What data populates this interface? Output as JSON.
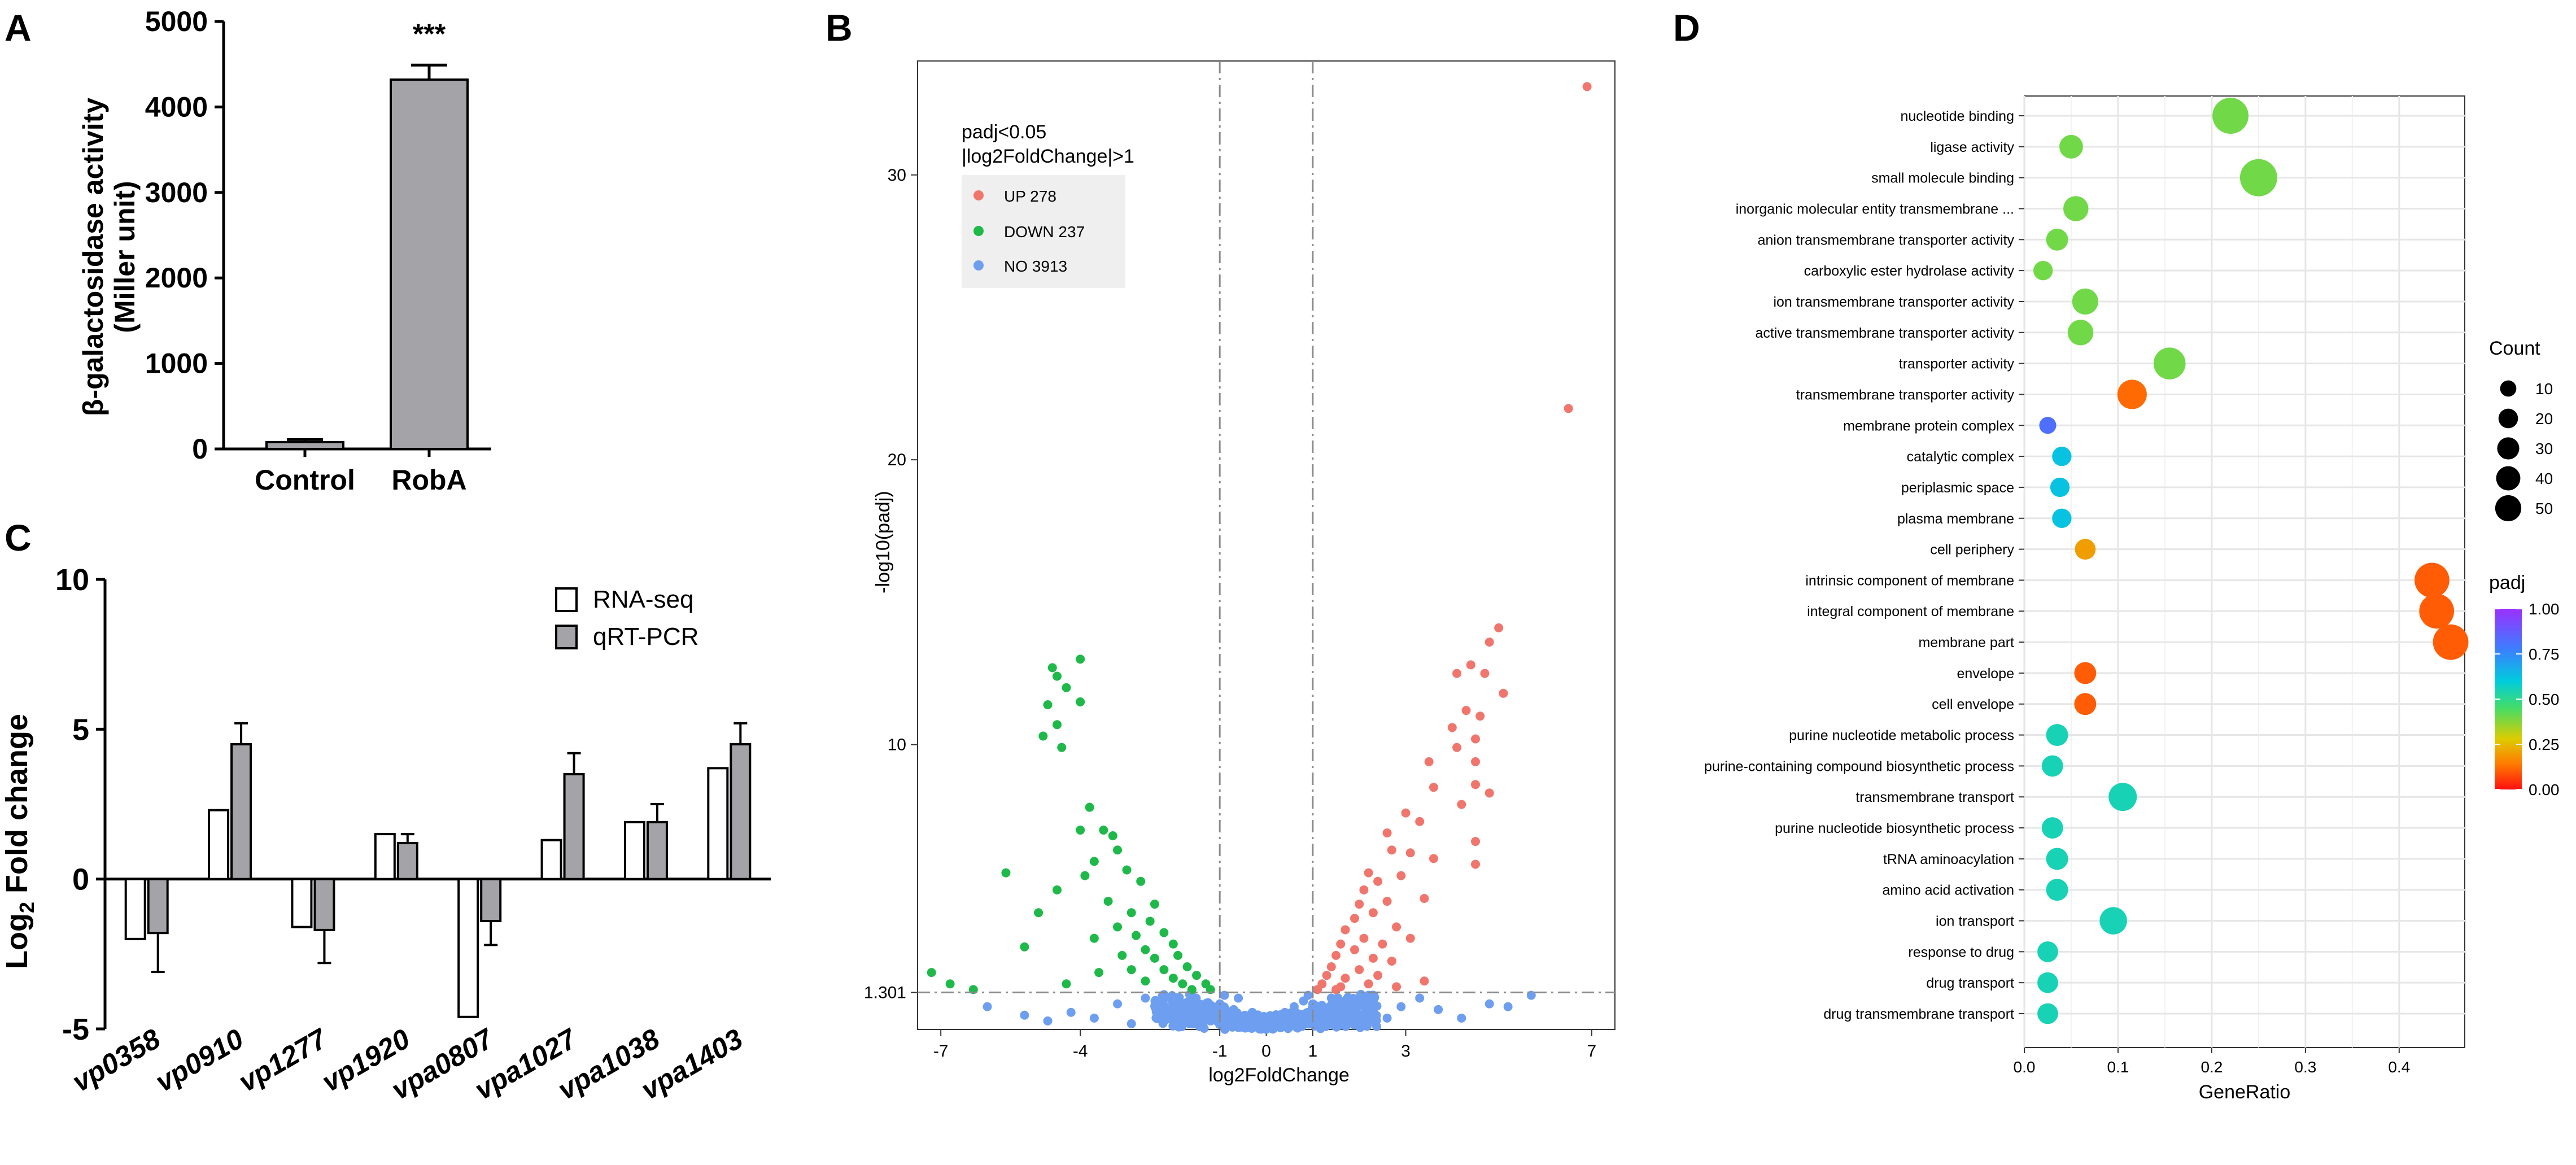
{
  "panels": {
    "A": "A",
    "B": "B",
    "C": "C",
    "D": "D"
  },
  "colors": {
    "up": "#f0766d",
    "down": "#1fb94a",
    "no": "#6d9ef0",
    "bar_gray": "#a3a3a8",
    "grid": "#e6e6e6"
  },
  "chart_data": [
    {
      "id": "A",
      "type": "bar",
      "title": "",
      "xlabel": "",
      "ylabel": "β-galactosidase activity",
      "ylabel2": "(Miller unit)",
      "categories": [
        "Control",
        "RobA"
      ],
      "values": [
        80,
        4320
      ],
      "errors": [
        30,
        170
      ],
      "annotation": "***",
      "ylim": [
        0,
        5000
      ],
      "yticks": [
        "0",
        "1000",
        "2000",
        "3000",
        "4000",
        "5000"
      ],
      "tick_values": [
        0,
        1000,
        2000,
        3000,
        4000,
        5000
      ]
    },
    {
      "id": "B",
      "type": "scatter",
      "title": "",
      "xlabel": "log2FoldChange",
      "ylabel": "-log10(padj)",
      "xlim": [
        -7.5,
        7.5
      ],
      "ylim": [
        0,
        34
      ],
      "xticks": [
        "-7",
        "-4",
        "-1",
        "0",
        "1",
        "3",
        "7"
      ],
      "xtick_values": [
        -7,
        -4,
        -1,
        0,
        1,
        3,
        7
      ],
      "yticks": [
        "1.301",
        "10",
        "20",
        "30"
      ],
      "ytick_values": [
        1.301,
        10,
        20,
        30
      ],
      "thresholds": {
        "padj_line": 1.301,
        "fc_lines": [
          -1,
          1
        ]
      },
      "legend": {
        "title1": "padj<0.05",
        "title2": "|log2FoldChange|>1",
        "entries": [
          {
            "label": "UP 278",
            "group": "up"
          },
          {
            "label": "DOWN 237",
            "group": "down"
          },
          {
            "label": "NO 3913",
            "group": "no"
          }
        ]
      },
      "up_points": [
        [
          6.9,
          33.1
        ],
        [
          6.5,
          21.8
        ],
        [
          5.0,
          14.1
        ],
        [
          4.8,
          13.6
        ],
        [
          4.4,
          12.8
        ],
        [
          4.7,
          12.5
        ],
        [
          4.1,
          12.5
        ],
        [
          5.1,
          11.8
        ],
        [
          4.3,
          11.2
        ],
        [
          4.6,
          11.0
        ],
        [
          4.0,
          10.6
        ],
        [
          4.5,
          10.2
        ],
        [
          4.1,
          9.9
        ],
        [
          4.5,
          9.4
        ],
        [
          3.5,
          9.4
        ],
        [
          4.5,
          8.6
        ],
        [
          3.6,
          8.5
        ],
        [
          4.8,
          8.3
        ],
        [
          4.2,
          7.9
        ],
        [
          3.3,
          7.3
        ],
        [
          3.0,
          7.6
        ],
        [
          2.6,
          6.9
        ],
        [
          4.5,
          6.6
        ],
        [
          3.6,
          6.0
        ],
        [
          4.5,
          5.8
        ],
        [
          2.7,
          6.3
        ],
        [
          3.1,
          6.2
        ],
        [
          2.2,
          5.5
        ],
        [
          2.4,
          5.2
        ],
        [
          2.9,
          5.4
        ],
        [
          2.1,
          4.9
        ],
        [
          3.4,
          4.6
        ],
        [
          2.6,
          4.5
        ],
        [
          2.0,
          4.4
        ],
        [
          1.9,
          3.9
        ],
        [
          2.3,
          4.1
        ],
        [
          2.8,
          3.6
        ],
        [
          1.7,
          3.5
        ],
        [
          2.1,
          3.2
        ],
        [
          1.6,
          3.0
        ],
        [
          2.5,
          3.0
        ],
        [
          3.1,
          3.2
        ],
        [
          1.5,
          2.6
        ],
        [
          1.9,
          2.8
        ],
        [
          2.3,
          2.5
        ],
        [
          1.4,
          2.2
        ],
        [
          2.0,
          2.1
        ],
        [
          2.7,
          2.4
        ],
        [
          1.3,
          1.9
        ],
        [
          1.7,
          1.8
        ],
        [
          2.4,
          1.9
        ],
        [
          1.2,
          1.6
        ],
        [
          1.6,
          1.5
        ],
        [
          2.2,
          1.6
        ],
        [
          3.4,
          1.7
        ],
        [
          1.1,
          1.4
        ],
        [
          1.5,
          1.4
        ],
        [
          2.8,
          1.5
        ]
      ],
      "down_points": [
        [
          -4.0,
          13.0
        ],
        [
          -4.6,
          12.7
        ],
        [
          -4.5,
          12.4
        ],
        [
          -4.3,
          12.0
        ],
        [
          -4.0,
          11.5
        ],
        [
          -4.7,
          11.4
        ],
        [
          -4.5,
          10.7
        ],
        [
          -4.8,
          10.3
        ],
        [
          -4.4,
          9.9
        ],
        [
          -3.8,
          7.8
        ],
        [
          -4.0,
          7.0
        ],
        [
          -3.5,
          7.0
        ],
        [
          -3.3,
          6.8
        ],
        [
          -3.2,
          6.3
        ],
        [
          -3.7,
          5.9
        ],
        [
          -5.6,
          5.5
        ],
        [
          -3.9,
          5.4
        ],
        [
          -3.0,
          5.6
        ],
        [
          -2.7,
          5.2
        ],
        [
          -4.5,
          4.9
        ],
        [
          -2.4,
          4.4
        ],
        [
          -3.4,
          4.5
        ],
        [
          -2.9,
          4.1
        ],
        [
          -4.9,
          4.1
        ],
        [
          -2.5,
          3.8
        ],
        [
          -3.2,
          3.6
        ],
        [
          -2.2,
          3.4
        ],
        [
          -2.8,
          3.3
        ],
        [
          -3.7,
          3.2
        ],
        [
          -2.0,
          3.0
        ],
        [
          -2.6,
          2.8
        ],
        [
          -5.2,
          2.9
        ],
        [
          -1.9,
          2.6
        ],
        [
          -2.4,
          2.5
        ],
        [
          -3.1,
          2.6
        ],
        [
          -1.7,
          2.2
        ],
        [
          -2.2,
          2.1
        ],
        [
          -2.9,
          2.1
        ],
        [
          -1.5,
          1.9
        ],
        [
          -2.0,
          1.8
        ],
        [
          -3.6,
          2.0
        ],
        [
          -1.3,
          1.6
        ],
        [
          -1.8,
          1.6
        ],
        [
          -2.6,
          1.7
        ],
        [
          -1.2,
          1.4
        ],
        [
          -1.6,
          1.4
        ],
        [
          -4.3,
          1.6
        ],
        [
          -7.2,
          2.0
        ],
        [
          -6.8,
          1.6
        ],
        [
          -6.3,
          1.4
        ]
      ],
      "no_points": [
        [
          -6.0,
          0.8
        ],
        [
          -5.2,
          0.5
        ],
        [
          -4.7,
          0.3
        ],
        [
          -4.2,
          0.6
        ],
        [
          -3.7,
          0.4
        ],
        [
          -3.2,
          0.9
        ],
        [
          -2.9,
          0.2
        ],
        [
          -2.6,
          1.1
        ],
        [
          -2.3,
          0.6
        ],
        [
          -2.0,
          0.9
        ],
        [
          -1.8,
          0.4
        ],
        [
          -1.6,
          1.0
        ],
        [
          -1.4,
          0.7
        ],
        [
          -1.2,
          0.3
        ],
        [
          -1.0,
          0.9
        ],
        [
          -0.9,
          0.5
        ],
        [
          -0.8,
          0.2
        ],
        [
          -0.7,
          0.7
        ],
        [
          -0.6,
          1.1
        ],
        [
          -0.5,
          0.4
        ],
        [
          -0.4,
          0.1
        ],
        [
          -0.3,
          0.6
        ],
        [
          -0.2,
          0.3
        ],
        [
          -0.1,
          0.1
        ],
        [
          0.0,
          0.2
        ],
        [
          0.1,
          0.1
        ],
        [
          0.2,
          0.4
        ],
        [
          0.3,
          0.2
        ],
        [
          0.4,
          0.6
        ],
        [
          0.5,
          0.3
        ],
        [
          0.6,
          0.8
        ],
        [
          0.7,
          0.5
        ],
        [
          0.8,
          1.0
        ],
        [
          0.9,
          0.4
        ],
        [
          1.0,
          0.9
        ],
        [
          1.2,
          0.5
        ],
        [
          1.4,
          1.1
        ],
        [
          1.6,
          0.6
        ],
        [
          1.8,
          1.0
        ],
        [
          2.0,
          0.5
        ],
        [
          2.3,
          0.9
        ],
        [
          2.6,
          0.4
        ],
        [
          2.9,
          0.8
        ],
        [
          3.3,
          1.1
        ],
        [
          3.7,
          0.7
        ],
        [
          4.2,
          0.4
        ],
        [
          4.8,
          0.9
        ],
        [
          5.2,
          0.8
        ],
        [
          5.7,
          1.2
        ],
        [
          -1.5,
          0.2
        ],
        [
          1.5,
          0.2
        ],
        [
          -2.2,
          1.2
        ],
        [
          2.2,
          1.2
        ],
        [
          -0.9,
          1.2
        ],
        [
          0.9,
          1.2
        ]
      ]
    },
    {
      "id": "C",
      "type": "bar",
      "title": "",
      "xlabel": "",
      "ylabel": "Log",
      "ylabel_sub": "2",
      "ylabel_rest": " Fold change",
      "categories": [
        "vp0358",
        "vp0910",
        "vp1277",
        "vp1920",
        "vpa0807",
        "vpa1027",
        "vpa1038",
        "vpa1403"
      ],
      "series": [
        {
          "name": "RNA-seq",
          "values": [
            -2.0,
            2.3,
            -1.6,
            1.5,
            -4.6,
            1.3,
            1.9,
            3.7
          ],
          "errors": [
            0,
            0,
            0,
            0,
            0,
            0,
            0,
            0
          ]
        },
        {
          "name": "qRT-PCR",
          "values": [
            -1.8,
            4.5,
            -1.7,
            1.2,
            -1.4,
            3.5,
            1.9,
            4.5
          ],
          "errors": [
            1.3,
            0.7,
            1.1,
            0.3,
            0.8,
            0.7,
            0.6,
            0.7
          ]
        }
      ],
      "ylim": [
        -5,
        10
      ],
      "yticks": [
        "-5",
        "0",
        "5",
        "10"
      ],
      "tick_values": [
        -5,
        0,
        5,
        10
      ]
    },
    {
      "id": "D",
      "type": "scatter",
      "title": "",
      "xlabel": "GeneRatio",
      "ylabel": "",
      "xlim": [
        0,
        0.47
      ],
      "xticks": [
        "0.0",
        "0.1",
        "0.2",
        "0.3",
        "0.4"
      ],
      "xtick_values": [
        0,
        0.1,
        0.2,
        0.3,
        0.4
      ],
      "terms": [
        {
          "name": "nucleotide binding",
          "ratio": 0.22,
          "count": 48,
          "padj": 0.4
        },
        {
          "name": "ligase activity",
          "ratio": 0.05,
          "count": 15,
          "padj": 0.4
        },
        {
          "name": "small molecule binding",
          "ratio": 0.25,
          "count": 52,
          "padj": 0.4
        },
        {
          "name": "inorganic molecular entity transmembrane ...",
          "ratio": 0.055,
          "count": 18,
          "padj": 0.4
        },
        {
          "name": "anion transmembrane transporter activity",
          "ratio": 0.035,
          "count": 12,
          "padj": 0.4
        },
        {
          "name": "carboxylic ester hydrolase activity",
          "ratio": 0.02,
          "count": 8,
          "padj": 0.4
        },
        {
          "name": "ion transmembrane transporter activity",
          "ratio": 0.065,
          "count": 20,
          "padj": 0.4
        },
        {
          "name": "active transmembrane transporter activity",
          "ratio": 0.06,
          "count": 19,
          "padj": 0.4
        },
        {
          "name": "transporter activity",
          "ratio": 0.155,
          "count": 35,
          "padj": 0.4
        },
        {
          "name": "transmembrane transporter activity",
          "ratio": 0.115,
          "count": 28,
          "padj": 0.12
        },
        {
          "name": "membrane protein complex",
          "ratio": 0.025,
          "count": 5,
          "padj": 0.82
        },
        {
          "name": "catalytic complex",
          "ratio": 0.04,
          "count": 8,
          "padj": 0.62
        },
        {
          "name": "periplasmic space",
          "ratio": 0.038,
          "count": 8,
          "padj": 0.62
        },
        {
          "name": "plasma membrane",
          "ratio": 0.04,
          "count": 8,
          "padj": 0.62
        },
        {
          "name": "cell periphery",
          "ratio": 0.065,
          "count": 10,
          "padj": 0.2
        },
        {
          "name": "intrinsic component of membrane",
          "ratio": 0.435,
          "count": 44,
          "padj": 0.1
        },
        {
          "name": "integral component of membrane",
          "ratio": 0.44,
          "count": 44,
          "padj": 0.1
        },
        {
          "name": "membrane part",
          "ratio": 0.455,
          "count": 46,
          "padj": 0.1
        },
        {
          "name": "envelope",
          "ratio": 0.065,
          "count": 12,
          "padj": 0.1
        },
        {
          "name": "cell envelope",
          "ratio": 0.065,
          "count": 12,
          "padj": 0.1
        },
        {
          "name": "purine nucleotide metabolic process",
          "ratio": 0.035,
          "count": 12,
          "padj": 0.55
        },
        {
          "name": "purine-containing compound biosynthetic process",
          "ratio": 0.03,
          "count": 11,
          "padj": 0.55
        },
        {
          "name": "transmembrane transport",
          "ratio": 0.105,
          "count": 25,
          "padj": 0.55
        },
        {
          "name": "purine nucleotide biosynthetic process",
          "ratio": 0.03,
          "count": 11,
          "padj": 0.55
        },
        {
          "name": "tRNA aminoacylation",
          "ratio": 0.035,
          "count": 12,
          "padj": 0.55
        },
        {
          "name": "amino acid activation",
          "ratio": 0.035,
          "count": 12,
          "padj": 0.55
        },
        {
          "name": "ion transport",
          "ratio": 0.095,
          "count": 23,
          "padj": 0.55
        },
        {
          "name": "response to drug",
          "ratio": 0.025,
          "count": 10,
          "padj": 0.55
        },
        {
          "name": "drug transport",
          "ratio": 0.025,
          "count": 10,
          "padj": 0.55
        },
        {
          "name": "drug transmembrane transport",
          "ratio": 0.025,
          "count": 10,
          "padj": 0.55
        }
      ],
      "legend_count": {
        "title": "Count",
        "labels": [
          "10",
          "20",
          "30",
          "40",
          "50"
        ],
        "values": [
          10,
          20,
          30,
          40,
          50
        ]
      },
      "legend_padj": {
        "title": "padj",
        "labels": [
          "1.00",
          "0.75",
          "0.50",
          "0.25",
          "0.00"
        ],
        "values": [
          1.0,
          0.75,
          0.5,
          0.25,
          0.0
        ]
      }
    }
  ]
}
